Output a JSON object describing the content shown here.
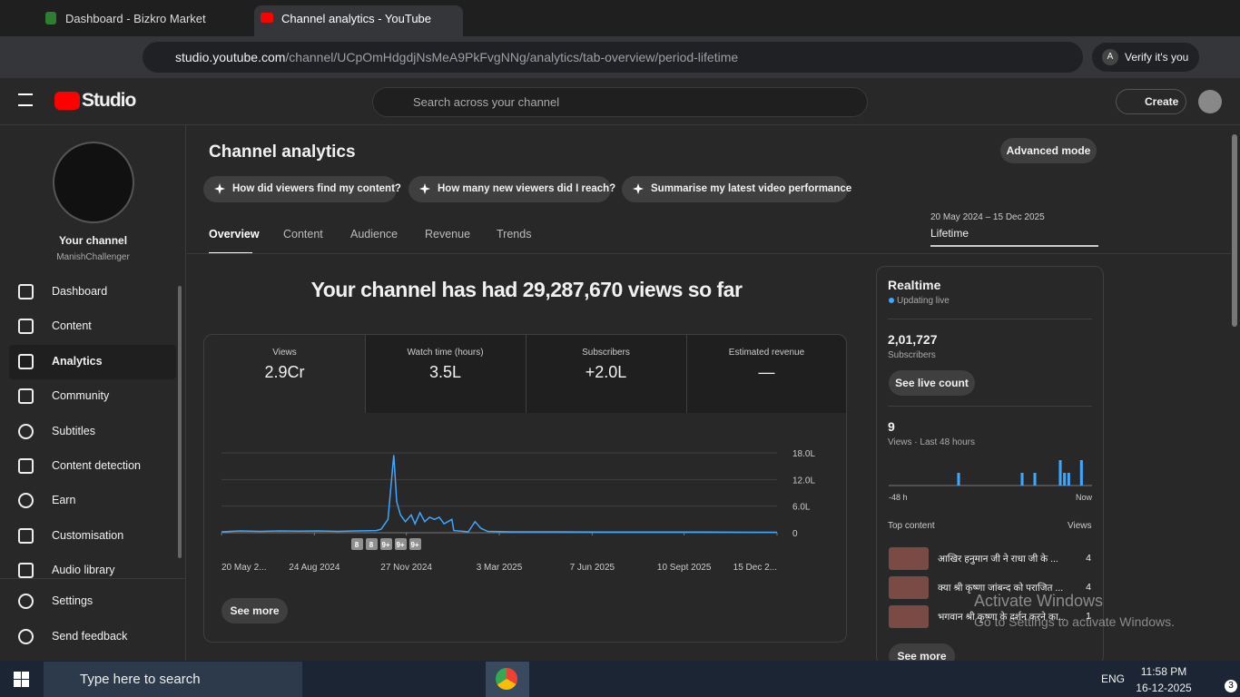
{
  "browser": {
    "tabs": [
      "Dashboard - Bizkro Market",
      "Channel analytics - YouTube Stu"
    ],
    "url_host": "studio.youtube.com",
    "url_path": "/channel/UCpOmHdgdjNsMeA9PkFvgNNg/analytics/tab-overview/period-lifetime",
    "profile_badge": "A",
    "verify": "Verify it's you"
  },
  "header": {
    "logo": "Studio",
    "search_placeholder": "Search across your channel",
    "create": "Create"
  },
  "sidebar": {
    "channel_title": "Your channel",
    "channel_name": "ManishChallenger",
    "items": [
      "Dashboard",
      "Content",
      "Analytics",
      "Community",
      "Subtitles",
      "Content detection",
      "Earn",
      "Customisation",
      "Audio library"
    ],
    "footer_items": [
      "Settings",
      "Send feedback"
    ]
  },
  "page": {
    "title": "Channel analytics",
    "advanced": "Advanced mode",
    "prompts": [
      "How did viewers find my content?",
      "How many new viewers did I reach?",
      "Summarise my latest video performance"
    ],
    "tabs": [
      "Overview",
      "Content",
      "Audience",
      "Revenue",
      "Trends"
    ],
    "period_range": "20 May 2024 – 15 Dec 2025",
    "period_label": "Lifetime",
    "headline": "Your channel has had 29,287,670 views so far",
    "metrics": [
      {
        "label": "Views",
        "value": "2.9Cr"
      },
      {
        "label": "Watch time (hours)",
        "value": "3.5L"
      },
      {
        "label": "Subscribers",
        "value": "+2.0L"
      },
      {
        "label": "Estimated revenue",
        "value": "—"
      }
    ],
    "see_more": "See more"
  },
  "realtime": {
    "title": "Realtime",
    "status": "Updating live",
    "subscribers": "2,01,727",
    "subscribers_label": "Subscribers",
    "live_count": "See live count",
    "views": "9",
    "views_label": "Views · Last 48 hours",
    "top_content": "Top content",
    "views_col": "Views",
    "items": [
      {
        "title": "आखिर हनुमान जी ने राधा जी के ...",
        "views": "4"
      },
      {
        "title": "क्या श्री कृष्णा जांबन्द को पराजित ...",
        "views": "4"
      },
      {
        "title": "भगवान श्री कृष्णा के दर्शन करने का...",
        "views": "1"
      }
    ],
    "see_more": "See more"
  },
  "chart_data": [
    {
      "type": "line",
      "color": "#3ea6ff",
      "x": [
        0,
        20,
        40,
        60,
        80,
        100,
        120,
        140,
        160,
        165,
        172,
        178,
        181,
        185,
        190,
        196,
        200,
        205,
        210,
        215,
        220,
        225,
        230,
        238,
        240,
        255,
        262,
        268,
        275,
        300,
        350,
        400,
        450,
        500,
        550,
        574
      ],
      "values": [
        20000,
        40000,
        30000,
        40000,
        35000,
        40000,
        30000,
        40000,
        50000,
        80000,
        300000,
        1750000,
        700000,
        400000,
        250000,
        400000,
        200000,
        450000,
        250000,
        350000,
        300000,
        350000,
        200000,
        300000,
        50000,
        20000,
        250000,
        100000,
        30000,
        20000,
        20000,
        15000,
        15000,
        15000,
        10000,
        10000
      ],
      "xlim": [
        0,
        574
      ],
      "xticks": [
        {
          "value": 0,
          "label": "20 May 2..."
        },
        {
          "value": 96,
          "label": "24 Aug 2024"
        },
        {
          "value": 191,
          "label": "27 Nov 2024"
        },
        {
          "value": 287,
          "label": "3 Mar 2025"
        },
        {
          "value": 383,
          "label": "7 Jun 2025"
        },
        {
          "value": 478,
          "label": "10 Sept 2025"
        },
        {
          "value": 574,
          "label": "15 Dec 2..."
        }
      ],
      "ylim": [
        0,
        1800000
      ],
      "yticks": [
        0,
        {
          "value": 600000,
          "label": "6.0L"
        },
        {
          "value": 1200000,
          "label": "12.0L"
        },
        {
          "value": 1800000,
          "label": "18.0L"
        }
      ],
      "grid": true,
      "annotations": [
        "8",
        "8",
        "9+",
        "9+",
        "9+"
      ]
    },
    {
      "type": "bar",
      "color": "#3ea6ff",
      "categories": [
        "-48 h",
        null,
        null,
        null,
        null,
        null,
        null,
        null,
        null,
        null,
        null,
        null,
        null,
        null,
        null,
        null,
        null,
        null,
        null,
        null,
        null,
        null,
        null,
        null,
        null,
        null,
        null,
        null,
        null,
        null,
        null,
        null,
        null,
        null,
        null,
        null,
        null,
        null,
        null,
        null,
        null,
        null,
        null,
        null,
        null,
        null,
        null,
        "Now"
      ],
      "values": [
        0,
        0,
        0,
        0,
        0,
        0,
        0,
        0,
        0,
        0,
        0,
        0,
        0,
        0,
        0,
        0,
        1,
        0,
        0,
        0,
        0,
        0,
        0,
        0,
        0,
        0,
        0,
        0,
        0,
        0,
        0,
        1,
        0,
        0,
        1,
        0,
        0,
        0,
        0,
        0,
        2,
        1,
        1,
        0,
        0,
        2,
        0,
        0
      ],
      "ylim": [
        0,
        2
      ]
    }
  ],
  "overlay": {
    "activate_title": "Activate Windows",
    "activate_sub": "Go to Settings to activate Windows."
  },
  "taskbar": {
    "search": "Type here to search",
    "lang": "ENG",
    "time": "11:58 PM",
    "date": "16-12-2025",
    "notifications": "3"
  }
}
